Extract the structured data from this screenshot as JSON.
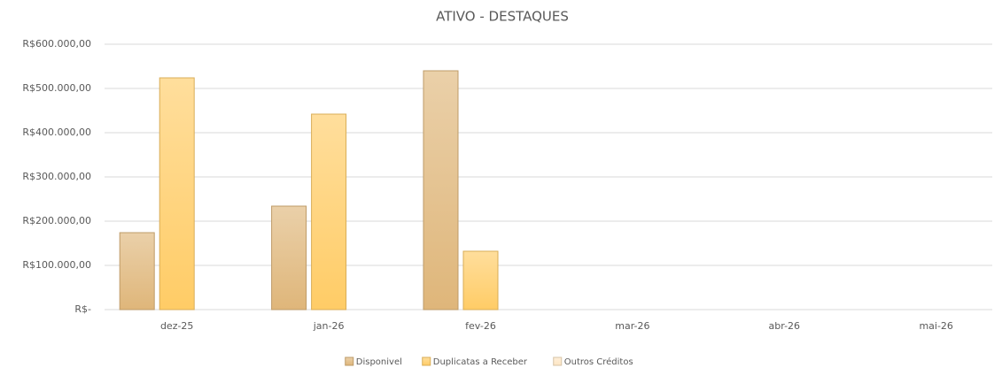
{
  "chart_data": {
    "type": "bar",
    "title": "ATIVO - DESTAQUES",
    "categories": [
      "dez-25",
      "jan-26",
      "fev-26",
      "mar-26",
      "abr-26",
      "mai-26"
    ],
    "series": [
      {
        "name": "Disponivel",
        "color": "#dfb67a",
        "values": [
          174000,
          234000,
          540000,
          null,
          null,
          null
        ]
      },
      {
        "name": "Duplicatas a Receber",
        "color": "#ffcc66",
        "values": [
          524000,
          442000,
          132000,
          null,
          null,
          null
        ]
      },
      {
        "name": "Outros Créditos",
        "color": "#fde6c4",
        "values": [
          null,
          null,
          null,
          null,
          null,
          null
        ]
      }
    ],
    "ylim": [
      0,
      600000
    ],
    "yticks": [
      {
        "value": 0,
        "label": "R$-"
      },
      {
        "value": 100000,
        "label": "R$100.000,00"
      },
      {
        "value": 200000,
        "label": "R$200.000,00"
      },
      {
        "value": 300000,
        "label": "R$300.000,00"
      },
      {
        "value": 400000,
        "label": "R$400.000,00"
      },
      {
        "value": 500000,
        "label": "R$500.000,00"
      },
      {
        "value": 600000,
        "label": "R$600.000,00"
      }
    ],
    "grid": true,
    "legend": "bottom"
  }
}
